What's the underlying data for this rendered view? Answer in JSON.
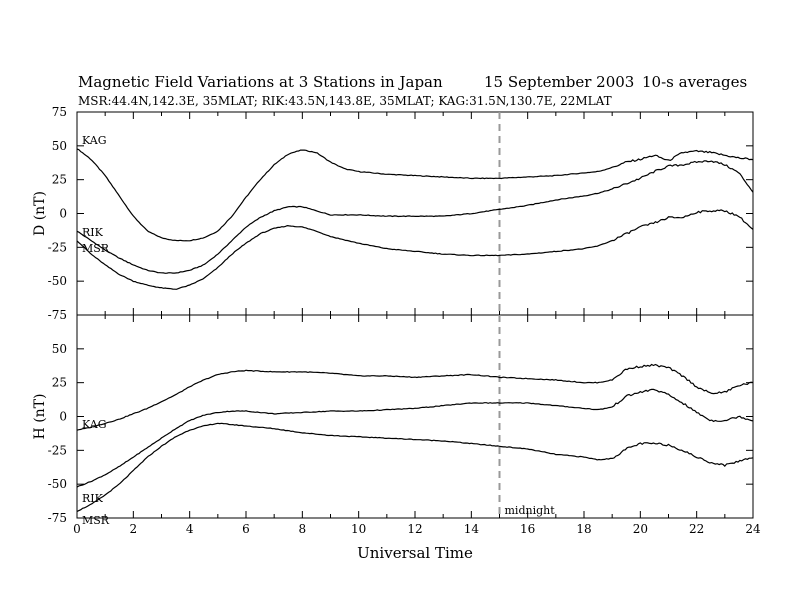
{
  "header": {
    "title": "Magnetic Field Variations at 3 Stations in Japan",
    "date": "15 September 2003",
    "averaging": "10-s averages",
    "stations_line": "MSR:44.4N,142.3E, 35MLAT;   RIK:43.5N,143.8E, 35MLAT;   KAG:31.5N,130.7E, 22MLAT"
  },
  "chart_data": [
    {
      "type": "line",
      "panel": "top",
      "ylabel": "D (nT)",
      "xlabel": "",
      "xlim": [
        0,
        24
      ],
      "ylim": [
        -75,
        75
      ],
      "yticks": [
        -75,
        -50,
        -25,
        0,
        25,
        50,
        75
      ],
      "xticks": [
        0,
        2,
        4,
        6,
        8,
        10,
        12,
        14,
        16,
        18,
        20,
        22,
        24
      ],
      "grid": false,
      "marker": {
        "x": 15,
        "style": "dashed",
        "color": "#999999"
      },
      "series": [
        {
          "name": "KAG",
          "x": [
            0,
            0.5,
            1,
            1.5,
            2,
            2.5,
            3,
            3.5,
            4,
            4.5,
            5,
            5.5,
            6,
            6.5,
            7,
            7.5,
            8,
            8.5,
            9,
            9.5,
            10,
            11,
            12,
            13,
            14,
            15,
            16,
            17,
            18,
            18.5,
            19,
            19.5,
            20,
            20.5,
            21,
            21.5,
            22,
            22.5,
            23,
            23.5,
            24
          ],
          "y": [
            48,
            40,
            28,
            13,
            -2,
            -13,
            -18,
            -20,
            -20,
            -18,
            -13,
            -2,
            12,
            25,
            36,
            44,
            47,
            45,
            38,
            33,
            31,
            29,
            28,
            27,
            26,
            26,
            27,
            28,
            30,
            31,
            34,
            38,
            40,
            43,
            39,
            45,
            46,
            45,
            43,
            41,
            40
          ]
        },
        {
          "name": "RIK",
          "x": [
            0,
            0.5,
            1,
            1.5,
            2,
            2.5,
            3,
            3.5,
            4,
            4.5,
            5,
            5.5,
            6,
            6.5,
            7,
            7.5,
            8,
            8.5,
            9,
            10,
            11,
            12,
            13,
            14,
            15,
            16,
            17,
            18,
            18.5,
            19,
            19.5,
            20,
            20.5,
            21,
            21.5,
            22,
            22.5,
            23,
            23.5,
            24
          ],
          "y": [
            -13,
            -20,
            -27,
            -33,
            -38,
            -42,
            -44,
            -44,
            -42,
            -38,
            -30,
            -20,
            -10,
            -3,
            2,
            5,
            5,
            2,
            -1,
            -1,
            -2,
            -2,
            -2,
            0,
            3,
            6,
            10,
            13,
            15,
            18,
            22,
            26,
            31,
            35,
            36,
            38,
            39,
            36,
            30,
            16
          ]
        },
        {
          "name": "MSR",
          "x": [
            0,
            0.5,
            1,
            1.5,
            2,
            2.5,
            3,
            3.5,
            4,
            4.5,
            5,
            5.5,
            6,
            6.5,
            7,
            7.5,
            8,
            8.5,
            9,
            10,
            11,
            12,
            13,
            14,
            15,
            16,
            17,
            18,
            18.5,
            19,
            19.5,
            20,
            20.5,
            21,
            21.5,
            22,
            22.5,
            23,
            23.5,
            24
          ],
          "y": [
            -20,
            -30,
            -38,
            -45,
            -50,
            -53,
            -55,
            -56,
            -53,
            -48,
            -40,
            -30,
            -22,
            -15,
            -11,
            -9,
            -10,
            -13,
            -17,
            -22,
            -26,
            -28,
            -30,
            -31,
            -31,
            -30,
            -28,
            -26,
            -24,
            -20,
            -15,
            -10,
            -7,
            -3,
            -3,
            1,
            2,
            2,
            -2,
            -12
          ]
        }
      ]
    },
    {
      "type": "line",
      "panel": "bottom",
      "ylabel": "H (nT)",
      "xlabel": "Universal Time",
      "xlim": [
        0,
        24
      ],
      "ylim": [
        -75,
        75
      ],
      "yticks": [
        -75,
        -50,
        -25,
        0,
        25,
        50
      ],
      "xticks": [
        0,
        2,
        4,
        6,
        8,
        10,
        12,
        14,
        16,
        18,
        20,
        22,
        24
      ],
      "grid": false,
      "marker": {
        "x": 15,
        "style": "dashed",
        "color": "#999999",
        "label": "midnight"
      },
      "series": [
        {
          "name": "KAG",
          "x": [
            0,
            0.5,
            1,
            1.5,
            2,
            2.5,
            3,
            3.5,
            4,
            4.5,
            5,
            5.5,
            6,
            7,
            8,
            9,
            10,
            11,
            12,
            13,
            14,
            15,
            16,
            17,
            18,
            18.5,
            19,
            19.5,
            20,
            20.5,
            21,
            21.5,
            22,
            22.5,
            23,
            23.5,
            24
          ],
          "y": [
            -10,
            -8,
            -5,
            -2,
            2,
            6,
            11,
            16,
            22,
            27,
            31,
            33,
            34,
            33,
            33,
            32,
            30,
            30,
            29,
            30,
            31,
            29,
            28,
            27,
            25,
            25,
            27,
            35,
            37,
            38,
            36,
            30,
            22,
            17,
            18,
            23,
            25
          ]
        },
        {
          "name": "RIK",
          "x": [
            0,
            0.5,
            1,
            1.5,
            2,
            2.5,
            3,
            3.5,
            4,
            4.5,
            5,
            5.5,
            6,
            7,
            8,
            9,
            10,
            11,
            12,
            13,
            14,
            15,
            16,
            17,
            18,
            18.5,
            19,
            19.5,
            20,
            20.5,
            21,
            21.5,
            22,
            22.5,
            23,
            23.5,
            24
          ],
          "y": [
            -52,
            -48,
            -43,
            -37,
            -30,
            -23,
            -16,
            -9,
            -3,
            1,
            3,
            4,
            4,
            2,
            3,
            4,
            4,
            5,
            6,
            8,
            10,
            10,
            10,
            8,
            6,
            5,
            7,
            15,
            18,
            20,
            16,
            10,
            3,
            -3,
            -3,
            0,
            -3
          ]
        },
        {
          "name": "MSR",
          "x": [
            0,
            0.5,
            1,
            1.5,
            2,
            2.5,
            3,
            3.5,
            4,
            4.5,
            5,
            5.5,
            6,
            7,
            8,
            9,
            10,
            11,
            12,
            13,
            14,
            15,
            16,
            17,
            18,
            18.5,
            19,
            19.5,
            20,
            20.5,
            21,
            21.5,
            22,
            22.5,
            23,
            23.5,
            24
          ],
          "y": [
            -70,
            -65,
            -58,
            -50,
            -40,
            -30,
            -22,
            -15,
            -10,
            -7,
            -5,
            -6,
            -7,
            -9,
            -12,
            -14,
            -15,
            -16,
            -17,
            -18,
            -20,
            -22,
            -24,
            -28,
            -30,
            -32,
            -31,
            -24,
            -20,
            -20,
            -21,
            -25,
            -30,
            -34,
            -36,
            -33,
            -30
          ]
        }
      ]
    }
  ]
}
